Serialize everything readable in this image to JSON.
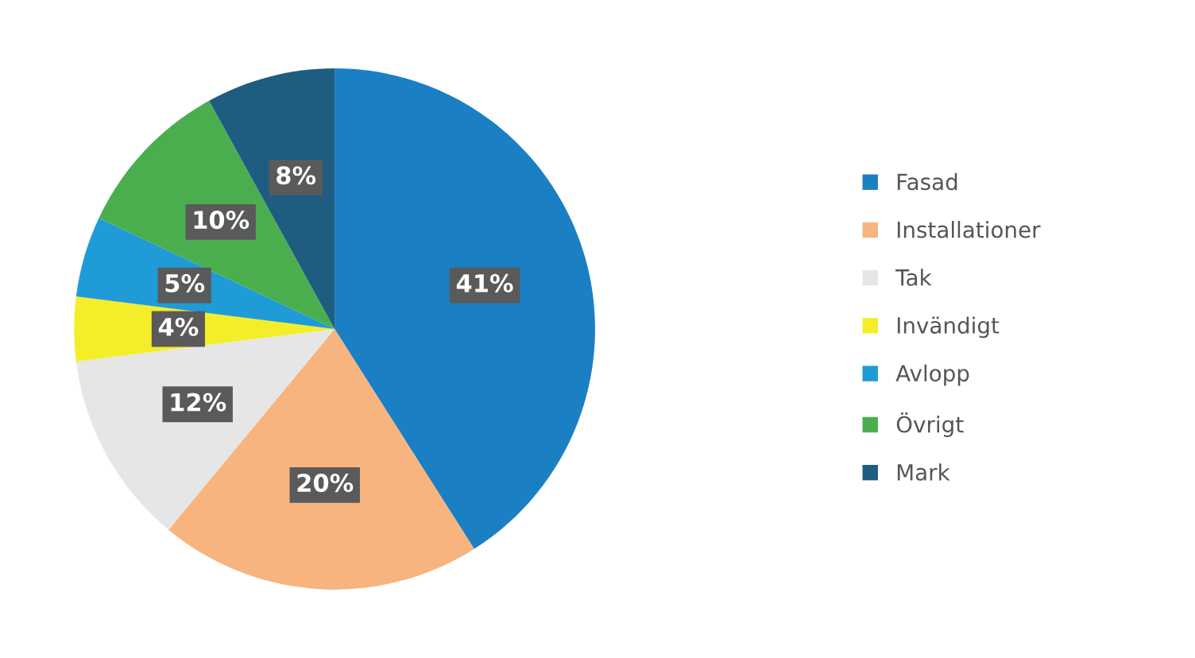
{
  "chart_data": {
    "type": "pie",
    "categories": [
      "Fasad",
      "Installationer",
      "Tak",
      "Invändigt",
      "Avlopp",
      "Övrigt",
      "Mark"
    ],
    "values": [
      41,
      20,
      12,
      4,
      5,
      10,
      8
    ],
    "value_labels": [
      "41%",
      "20%",
      "12%",
      "4%",
      "5%",
      "10%",
      "8%"
    ],
    "colors": [
      "#1b7fc4",
      "#f7b47e",
      "#e6e6e6",
      "#f4ee2a",
      "#1f9bd8",
      "#4aae4f",
      "#1e5d80"
    ],
    "legend": "right"
  }
}
